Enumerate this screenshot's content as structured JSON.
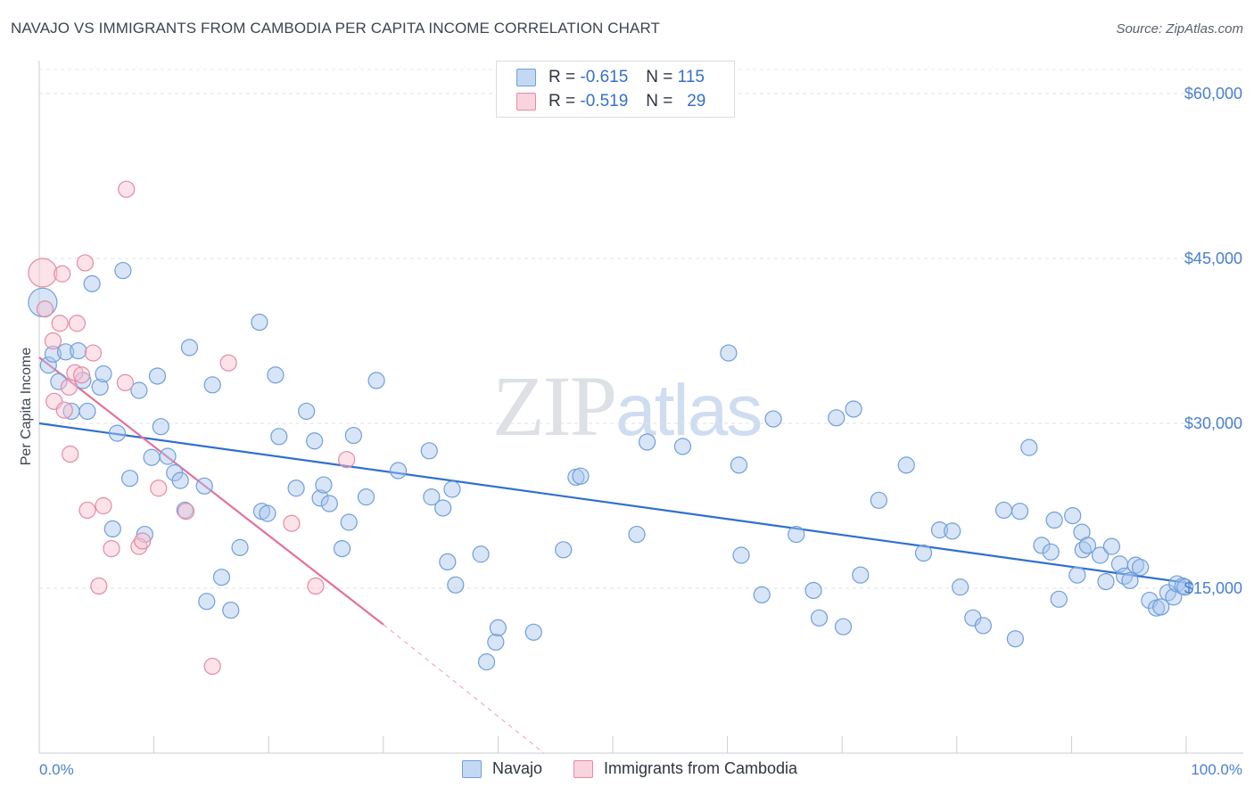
{
  "title": "NAVAJO VS IMMIGRANTS FROM CAMBODIA PER CAPITA INCOME CORRELATION CHART",
  "source": "Source: ZipAtlas.com",
  "watermark": {
    "zip": "ZIP",
    "atlas": "atlas"
  },
  "legend": {
    "rows": [
      {
        "r_label": "R =",
        "r_value": "-0.615",
        "n_label": "N =",
        "n_value": "115",
        "color": "#a9c6ee",
        "border": "#6f9fd9"
      },
      {
        "r_label": "R =",
        "r_value": "-0.519",
        "n_label": "N =",
        "n_value": "29",
        "color": "#f6c0cf",
        "border": "#e48aa6"
      }
    ]
  },
  "bottom_legend": {
    "navajo": "Navajo",
    "cambodia": "Immigrants from Cambodia"
  },
  "chart_data": {
    "type": "scatter",
    "title": "NAVAJO VS IMMIGRANTS FROM CAMBODIA PER CAPITA INCOME CORRELATION CHART",
    "xlabel": "",
    "ylabel": "Per Capita Income",
    "xlim": [
      0,
      100
    ],
    "ylim": [
      0,
      63000
    ],
    "x_tick_labels": [
      "0.0%",
      "100.0%"
    ],
    "y_ticks": [
      15000,
      30000,
      45000,
      60000
    ],
    "y_tick_labels": [
      "$15,000",
      "$30,000",
      "$45,000",
      "$60,000"
    ],
    "grid": "horizontal dashed",
    "legend_position": "top-center",
    "series": [
      {
        "name": "Navajo",
        "color": "#a9c6ee",
        "edge": "#6f9fd9",
        "trend_color": "#2f6fcf",
        "trend": {
          "x": [
            0,
            100
          ],
          "y": [
            30000,
            15500
          ]
        },
        "points": [
          [
            0.3,
            41000
          ],
          [
            0.8,
            35300
          ],
          [
            1.2,
            36300
          ],
          [
            1.7,
            33800
          ],
          [
            2.3,
            36500
          ],
          [
            2.8,
            31100
          ],
          [
            3.4,
            36600
          ],
          [
            3.8,
            33900
          ],
          [
            4.2,
            31100
          ],
          [
            4.6,
            42700
          ],
          [
            5.3,
            33300
          ],
          [
            5.6,
            34500
          ],
          [
            6.4,
            20400
          ],
          [
            6.8,
            29100
          ],
          [
            7.3,
            43900
          ],
          [
            7.9,
            25000
          ],
          [
            8.7,
            33000
          ],
          [
            9.2,
            19900
          ],
          [
            9.8,
            26900
          ],
          [
            10.3,
            34300
          ],
          [
            10.6,
            29700
          ],
          [
            11.2,
            27000
          ],
          [
            11.8,
            25500
          ],
          [
            12.3,
            24800
          ],
          [
            12.7,
            22100
          ],
          [
            13.1,
            36900
          ],
          [
            14.4,
            24300
          ],
          [
            14.6,
            13800
          ],
          [
            15.1,
            33500
          ],
          [
            15.9,
            16000
          ],
          [
            16.7,
            13000
          ],
          [
            17.5,
            18700
          ],
          [
            19.2,
            39200
          ],
          [
            19.4,
            22000
          ],
          [
            19.9,
            21800
          ],
          [
            20.6,
            34400
          ],
          [
            20.9,
            28800
          ],
          [
            22.4,
            24100
          ],
          [
            23.3,
            31100
          ],
          [
            24.0,
            28400
          ],
          [
            24.5,
            23200
          ],
          [
            24.8,
            24400
          ],
          [
            25.3,
            22700
          ],
          [
            26.4,
            18600
          ],
          [
            27.0,
            21000
          ],
          [
            27.4,
            28900
          ],
          [
            28.5,
            23300
          ],
          [
            29.4,
            33900
          ],
          [
            31.3,
            25700
          ],
          [
            34.0,
            27500
          ],
          [
            34.2,
            23300
          ],
          [
            35.2,
            22300
          ],
          [
            35.6,
            17400
          ],
          [
            36.0,
            24000
          ],
          [
            36.3,
            15300
          ],
          [
            38.5,
            18100
          ],
          [
            39.0,
            8300
          ],
          [
            39.8,
            10100
          ],
          [
            40.0,
            11400
          ],
          [
            43.1,
            11000
          ],
          [
            45.7,
            18500
          ],
          [
            46.8,
            25100
          ],
          [
            47.2,
            25200
          ],
          [
            52.1,
            19900
          ],
          [
            53.0,
            28300
          ],
          [
            56.1,
            27900
          ],
          [
            60.1,
            36400
          ],
          [
            61.0,
            26200
          ],
          [
            61.2,
            18000
          ],
          [
            63.0,
            14400
          ],
          [
            64.0,
            30400
          ],
          [
            66.0,
            19900
          ],
          [
            67.5,
            14800
          ],
          [
            68.0,
            12300
          ],
          [
            69.5,
            30500
          ],
          [
            70.1,
            11500
          ],
          [
            71.0,
            31300
          ],
          [
            71.6,
            16200
          ],
          [
            73.2,
            23000
          ],
          [
            75.6,
            26200
          ],
          [
            77.1,
            18200
          ],
          [
            78.5,
            20300
          ],
          [
            79.6,
            20200
          ],
          [
            80.3,
            15100
          ],
          [
            81.4,
            12300
          ],
          [
            82.3,
            11600
          ],
          [
            84.1,
            22100
          ],
          [
            85.1,
            10400
          ],
          [
            85.5,
            22000
          ],
          [
            86.3,
            27800
          ],
          [
            87.4,
            18900
          ],
          [
            88.2,
            18300
          ],
          [
            88.5,
            21200
          ],
          [
            88.9,
            14000
          ],
          [
            90.1,
            21600
          ],
          [
            90.5,
            16200
          ],
          [
            90.9,
            20100
          ],
          [
            91.0,
            18500
          ],
          [
            91.4,
            18900
          ],
          [
            92.5,
            18000
          ],
          [
            93.0,
            15600
          ],
          [
            93.5,
            18800
          ],
          [
            94.2,
            17200
          ],
          [
            94.6,
            16100
          ],
          [
            95.1,
            15700
          ],
          [
            95.6,
            17100
          ],
          [
            96.0,
            16900
          ],
          [
            96.8,
            13900
          ],
          [
            97.4,
            13200
          ],
          [
            97.8,
            13300
          ],
          [
            98.4,
            14600
          ],
          [
            98.9,
            14200
          ],
          [
            99.2,
            15400
          ],
          [
            99.7,
            15200
          ],
          [
            99.9,
            15100
          ]
        ]
      },
      {
        "name": "Immigrants from Cambodia",
        "color": "#f6c0cf",
        "edge": "#e48aa6",
        "trend_color": "#e4709a",
        "trend": {
          "x": [
            0,
            30
          ],
          "y": [
            36000,
            11700
          ]
        },
        "trend_dashed_extension": {
          "x": [
            30,
            44
          ],
          "y": [
            11700,
            0
          ]
        },
        "points": [
          [
            0.3,
            43700
          ],
          [
            0.5,
            40400
          ],
          [
            1.2,
            37500
          ],
          [
            1.3,
            32000
          ],
          [
            1.8,
            39100
          ],
          [
            2.0,
            43600
          ],
          [
            2.2,
            31200
          ],
          [
            2.6,
            33300
          ],
          [
            2.7,
            27200
          ],
          [
            3.1,
            34600
          ],
          [
            3.3,
            39100
          ],
          [
            3.7,
            34400
          ],
          [
            4.0,
            44600
          ],
          [
            4.2,
            22100
          ],
          [
            4.7,
            36400
          ],
          [
            5.2,
            15200
          ],
          [
            5.6,
            22500
          ],
          [
            6.3,
            18600
          ],
          [
            7.5,
            33700
          ],
          [
            7.6,
            51300
          ],
          [
            8.7,
            18800
          ],
          [
            9.0,
            19300
          ],
          [
            10.4,
            24100
          ],
          [
            12.8,
            22000
          ],
          [
            15.1,
            7900
          ],
          [
            16.5,
            35500
          ],
          [
            22.0,
            20900
          ],
          [
            24.1,
            15200
          ],
          [
            26.8,
            26700
          ]
        ]
      }
    ]
  }
}
